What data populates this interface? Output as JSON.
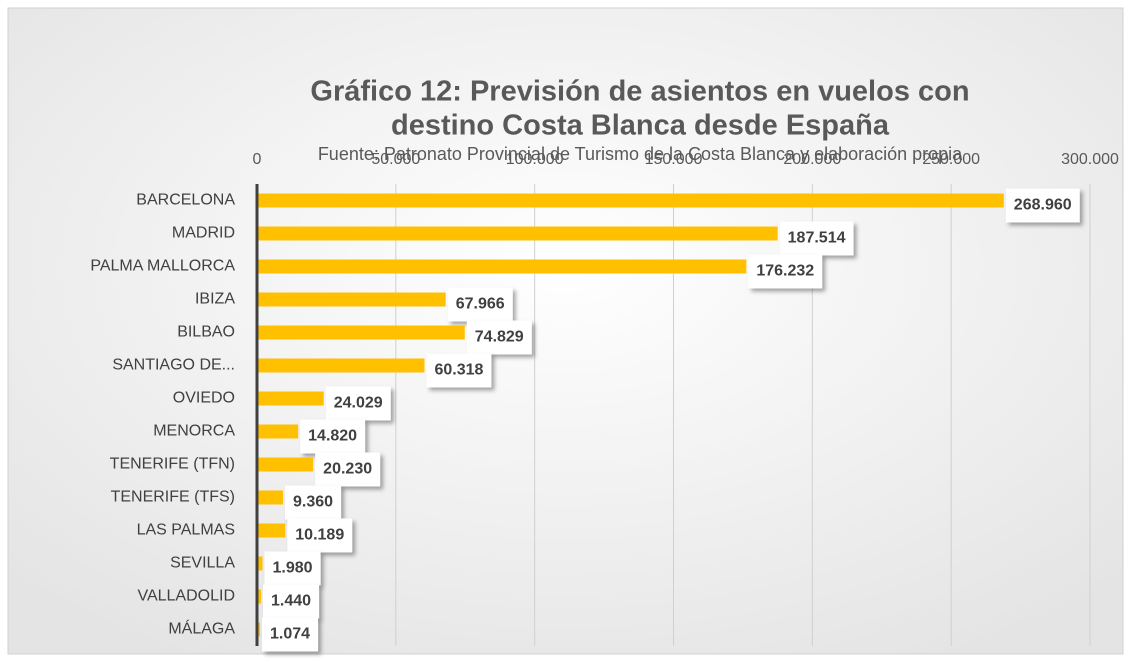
{
  "chart_data": {
    "type": "bar",
    "orientation": "horizontal",
    "title": [
      "Gráfico 12: Previsión de asientos en vuelos con",
      "destino Costa Blanca desde España"
    ],
    "subtitle": "Fuente: Patronato Provincial de Turismo de la Costa Blanca y elaboración propia",
    "categories": [
      "BARCELONA",
      "MADRID",
      "PALMA MALLORCA",
      "IBIZA",
      "BILBAO",
      "SANTIAGO DE...",
      "OVIEDO",
      "MENORCA",
      "TENERIFE (TFN)",
      "TENERIFE (TFS)",
      "LAS PALMAS",
      "SEVILLA",
      "VALLADOLID",
      "MÁLAGA"
    ],
    "values": [
      268960,
      187514,
      176232,
      67966,
      74829,
      60318,
      24029,
      14820,
      20230,
      9360,
      10189,
      1980,
      1440,
      1074
    ],
    "value_labels": [
      "268.960",
      "187.514",
      "176.232",
      "67.966",
      "74.829",
      "60.318",
      "24.029",
      "14.820",
      "20.230",
      "9.360",
      "10.189",
      "1.980",
      "1.440",
      "1.074"
    ],
    "color": "#ffc000",
    "xlim": [
      0,
      300000
    ],
    "xticks": [
      0,
      {
        "value": 50000,
        "label": "50.000"
      },
      {
        "value": 100000,
        "label": "100.000"
      },
      {
        "value": 150000,
        "label": "150.000"
      },
      {
        "value": 200000,
        "label": "200.000"
      },
      {
        "value": 250000,
        "label": "250.000"
      },
      {
        "value": 300000,
        "label": "300.000"
      }
    ],
    "grid": true
  }
}
